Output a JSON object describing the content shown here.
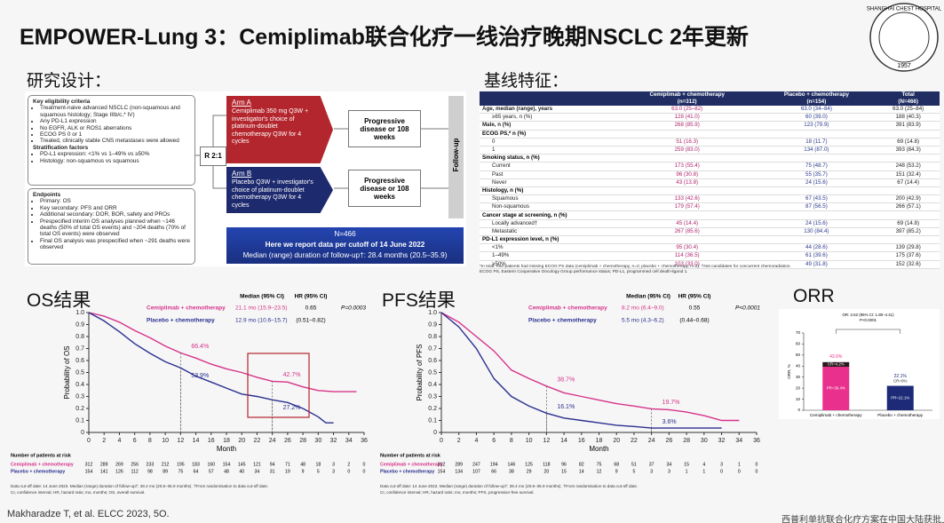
{
  "header": {
    "title": "EMPOWER-Lung 3：Cemiplimab联合化疗一线治疗晚期NSCLC 2年更新",
    "design_heading": "研究设计：",
    "baseline_heading": "基线特征：",
    "os_heading": "OS结果",
    "pfs_heading": "PFS结果",
    "orr_heading": "ORR"
  },
  "logo": {
    "name": "SHANGHAI CHEST HOSPITAL",
    "year": "1957"
  },
  "design": {
    "eligibility": {
      "title": "Key eligibility criteria",
      "items": [
        "Treatment-naive advanced NSCLC (non-squamous and squamous histology; Stage IIIb/c,* IV)",
        "Any PD-L1 expression",
        "No EGFR, ALK or ROS1 aberrations",
        "ECOG PS 0 or 1",
        "Treated, clinically stable CNS metastases were allowed"
      ]
    },
    "stratification": {
      "title": "Stratification factors",
      "items": [
        "PD-L1 expression: <1% vs 1–49% vs ≥50%",
        "Histology: non-squamous vs squamous"
      ]
    },
    "endpoints": {
      "title": "Endpoints",
      "items": [
        "Primary: OS",
        "Key secondary: PFS and ORR",
        "Additional secondary: DOR, BOR, safety and PROs",
        "Prespecified interim OS analyses planned when ~146 deaths (50% of total OS events) and ~204 deaths (70% of total OS events) were observed",
        "Final OS analysis was prespecified when ~291 deaths were observed"
      ]
    },
    "randomization": "R 2:1",
    "arm_a": {
      "label": "Arm A",
      "text": "Cemiplimab 350 mg Q3W + investigator's choice of platinum-doublet chemotherapy Q3W for 4 cycles"
    },
    "arm_b": {
      "label": "Arm B",
      "text": "Placebo Q3W + investigator's choice of platinum-doublet chemotherapy Q3W for 4 cycles"
    },
    "outcomes": [
      "Progressive disease or 108 weeks",
      "Progressive disease or 108 weeks"
    ],
    "follow_up": "Follow-up",
    "banner": [
      "N=466",
      "Here we report data per cutoff of 14 June 2022",
      "Median (range) duration of follow-up†: 28.4 months (20.5–35.9)"
    ]
  },
  "table": {
    "header": [
      [
        "Cemiplimab + chemotherapy",
        "(n=312)"
      ],
      [
        "Placebo + chemotherapy",
        "(n=154)"
      ],
      [
        "Total",
        "(N=466)"
      ]
    ],
    "rows": [
      [
        "Age, median (range), years",
        "63.0 (25–82)",
        "63.0 (34–84)",
        "63.0 (25–84)"
      ],
      [
        "≥65 years, n (%)",
        "128 (41.0)",
        "60 (39.0)",
        "188 (40.3)"
      ],
      [
        "Male, n (%)",
        "268 (85.9)",
        "123 (79.9)",
        "391 (83.9)"
      ],
      [
        "ECOG PS,* n (%)"
      ],
      [
        "0",
        "51 (16.3)",
        "18 (11.7)",
        "69 (14.8)"
      ],
      [
        "1",
        "259 (83.0)",
        "134 (87.0)",
        "393 (84.3)"
      ],
      [
        "Smoking status, n (%)"
      ],
      [
        "Current",
        "173 (55.4)",
        "75 (48.7)",
        "248 (53.2)"
      ],
      [
        "Past",
        "96 (30.8)",
        "55 (35.7)",
        "151 (32.4)"
      ],
      [
        "Never",
        "43 (13.8)",
        "24 (15.6)",
        "67 (14.4)"
      ],
      [
        "Histology, n (%)"
      ],
      [
        "Squamous",
        "133 (42.6)",
        "67 (43.5)",
        "200 (42.9)"
      ],
      [
        "Non-squamous",
        "179 (57.4)",
        "87 (56.5)",
        "266 (57.1)"
      ],
      [
        "Cancer stage at screening, n (%)"
      ],
      [
        "Locally advanced†",
        "45 (14.4)",
        "24 (15.6)",
        "69 (14.8)"
      ],
      [
        "Metastatic",
        "267 (85.6)",
        "130 (84.4)",
        "397 (85.2)"
      ],
      [
        "PD-L1 expression level, n (%)"
      ],
      [
        "<1%",
        "95 (30.4)",
        "44 (28.6)",
        "139 (29.8)"
      ],
      [
        "1–49%",
        "114 (36.5)",
        "61 (39.6)",
        "175 (37.6)"
      ],
      [
        "≥50%",
        "103 (33.0)",
        "49 (31.8)",
        "152 (32.6)"
      ]
    ],
    "footnotes": [
      "*In total, four patients had missing ECOG PS data (cemiplimab + chemotherapy, n=2; placebo + chemotherapy, n=2). †Not candidates for concurrent chemoradiation.",
      "ECOG PS, Eastern Cooperative Oncology Group performance status; PD-L1, programmed cell death-ligand 1."
    ]
  },
  "chart_data": [
    {
      "type": "km",
      "y_label": "Probability of OS",
      "x_label": "Month",
      "xlim": [
        0,
        36
      ],
      "ylim": [
        0,
        1
      ],
      "xticks": [
        0,
        2,
        4,
        6,
        8,
        10,
        12,
        14,
        16,
        18,
        20,
        22,
        24,
        26,
        28,
        30,
        32,
        34,
        36
      ],
      "yticks": [
        0,
        0.1,
        0.2,
        0.3,
        0.4,
        0.5,
        0.6,
        0.7,
        0.8,
        0.9,
        {
          "value": 1,
          "label": "1.0"
        }
      ],
      "summary_header": [
        "Median (95% CI)",
        "HR (95% CI)"
      ],
      "hr": "0.65",
      "hr_ci": "(0.51–0.82)",
      "p_value": "P=0.0003",
      "at_risk_title": "Number of patients at risk",
      "series": [
        {
          "name": "Cemiplimab + chemotherapy",
          "color": "#d6338a",
          "median": "21.1 mo (15.9–23.5)",
          "x": [
            0,
            2,
            4,
            6,
            8,
            10,
            12,
            14,
            16,
            18,
            20,
            22,
            24,
            26,
            28,
            30,
            32,
            34,
            35
          ],
          "values": [
            1,
            0.97,
            0.92,
            0.85,
            0.79,
            0.72,
            0.664,
            0.62,
            0.57,
            0.53,
            0.5,
            0.46,
            0.427,
            0.42,
            0.38,
            0.35,
            0.34,
            0.34,
            0.34
          ],
          "landmarks": [
            {
              "x": 12,
              "value": 0.664,
              "label": "66.4%"
            },
            {
              "x": 24,
              "value": 0.427,
              "label": "42.7%"
            }
          ],
          "at_risk": [
            312,
            289,
            269,
            256,
            233,
            212,
            195,
            183,
            160,
            154,
            145,
            121,
            94,
            71,
            48,
            18,
            3,
            2,
            0
          ]
        },
        {
          "name": "Placebo + chemotherapy",
          "color": "#2b2f8f",
          "median": "12.9 mo (10.6–15.7)",
          "x": [
            0,
            2,
            4,
            6,
            8,
            10,
            12,
            14,
            16,
            18,
            20,
            22,
            24,
            26,
            28,
            30,
            31,
            32
          ],
          "values": [
            1,
            0.93,
            0.84,
            0.74,
            0.66,
            0.59,
            0.539,
            0.47,
            0.42,
            0.37,
            0.32,
            0.3,
            0.272,
            0.25,
            0.2,
            0.13,
            0.08,
            0.08
          ],
          "landmarks": [
            {
              "x": 12,
              "value": 0.539,
              "label": "53.9%"
            },
            {
              "x": 24,
              "value": 0.272,
              "label": "27.2%"
            }
          ],
          "at_risk": [
            154,
            141,
            126,
            112,
            98,
            89,
            75,
            64,
            57,
            48,
            40,
            34,
            31,
            19,
            9,
            5,
            3,
            0,
            0
          ]
        }
      ],
      "footnotes": [
        "Data cut-off date: 14 June 2022. Median (range) duration of follow-up†: 28.4 mo (20.5–35.9 months). †From randomisation to data cut-off date.",
        "CI, confidence interval; HR, hazard ratio; mo, months; OS, overall survival."
      ]
    },
    {
      "type": "km",
      "y_label": "Probability of PFS",
      "x_label": "Month",
      "xlim": [
        0,
        36
      ],
      "ylim": [
        0,
        1
      ],
      "xticks": [
        0,
        2,
        4,
        6,
        8,
        10,
        12,
        14,
        16,
        18,
        20,
        22,
        24,
        26,
        28,
        30,
        32,
        34,
        36
      ],
      "yticks": [
        0,
        0.1,
        0.2,
        0.3,
        0.4,
        0.5,
        0.6,
        0.7,
        0.8,
        0.9,
        {
          "value": 1,
          "label": "1.0"
        }
      ],
      "summary_header": [
        "Median (95% CI)",
        "HR (95% CI)"
      ],
      "hr": "0.55",
      "hr_ci": "(0.44–0.68)",
      "p_value": "P<0.0001",
      "at_risk_title": "Number of patients at risk",
      "series": [
        {
          "name": "Cemiplimab + chemotherapy",
          "color": "#d6338a",
          "median": "8.2 mo (6.4–9.0)",
          "x": [
            0,
            2,
            4,
            6,
            8,
            10,
            12,
            14,
            16,
            18,
            20,
            22,
            24,
            26,
            28,
            30,
            32,
            34
          ],
          "values": [
            1,
            0.92,
            0.8,
            0.68,
            0.52,
            0.45,
            0.387,
            0.33,
            0.3,
            0.27,
            0.24,
            0.22,
            0.197,
            0.19,
            0.17,
            0.14,
            0.1,
            0.1
          ],
          "landmarks": [
            {
              "x": 12,
              "value": 0.387,
              "label": "38.7%"
            },
            {
              "x": 24,
              "value": 0.197,
              "label": "19.7%"
            }
          ],
          "at_risk": [
            312,
            289,
            247,
            194,
            146,
            125,
            118,
            96,
            82,
            75,
            68,
            51,
            37,
            34,
            15,
            4,
            3,
            1,
            0
          ]
        },
        {
          "name": "Placebo + chemotherapy",
          "color": "#2b2f8f",
          "median": "5.5 mo (4.3–6.2)",
          "x": [
            0,
            2,
            4,
            6,
            8,
            10,
            12,
            14,
            16,
            18,
            20,
            22,
            24,
            26,
            28,
            30,
            32
          ],
          "values": [
            1,
            0.88,
            0.7,
            0.45,
            0.3,
            0.22,
            0.161,
            0.12,
            0.1,
            0.08,
            0.06,
            0.05,
            0.036,
            0.036,
            0.036,
            0.036,
            0.036
          ],
          "landmarks": [
            {
              "x": 12,
              "value": 0.161,
              "label": "16.1%"
            },
            {
              "x": 24,
              "value": 0.036,
              "label": "3.6%"
            }
          ],
          "at_risk": [
            154,
            134,
            107,
            66,
            38,
            29,
            20,
            15,
            14,
            12,
            9,
            5,
            3,
            3,
            1,
            1,
            0,
            0,
            0
          ]
        }
      ],
      "footnotes": [
        "Data cut-off date: 14 June 2022. Median (range) duration of follow-up†: 28.4 mo (20.5–35.9 months). †From randomisation to data cut-off date.",
        "CI, confidence interval; HR, hazard ratio; mo, months; PFS, progression-free survival."
      ]
    },
    {
      "type": "stacked_bar",
      "y_label": "ORR, %",
      "ylim": [
        0,
        70
      ],
      "yticks": [
        0,
        10,
        20,
        30,
        40,
        50,
        60,
        70
      ],
      "comparison": [
        "OR: 2.62 (95% CI: 1.80–4.41)",
        "P<0.0001"
      ],
      "categories": [
        "Cemiplimab + chemotherapy",
        "Placebo + chemotherapy"
      ],
      "series": [
        {
          "name": "PR",
          "colors": [
            "#e8308c",
            "#1c2a78"
          ],
          "values": [
            39.4,
            22.1
          ],
          "value_labels": [
            "PR=39.4%",
            "PR=22.1%"
          ]
        },
        {
          "name": "CR",
          "colors": [
            "#2a1a1e",
            "#1c2a78"
          ],
          "values": [
            4.2,
            0
          ],
          "value_labels": [
            "CR=4.2%",
            "CR=0%"
          ]
        }
      ],
      "totals": [
        43.6,
        22.1
      ],
      "total_labels": [
        "43.6%",
        "22.1%"
      ]
    }
  ],
  "footer": {
    "citation": "Makharadze T, et al. ELCC 2023, 5O.",
    "note": "西普利单抗联合化疗方案在中国大陆获批上"
  }
}
